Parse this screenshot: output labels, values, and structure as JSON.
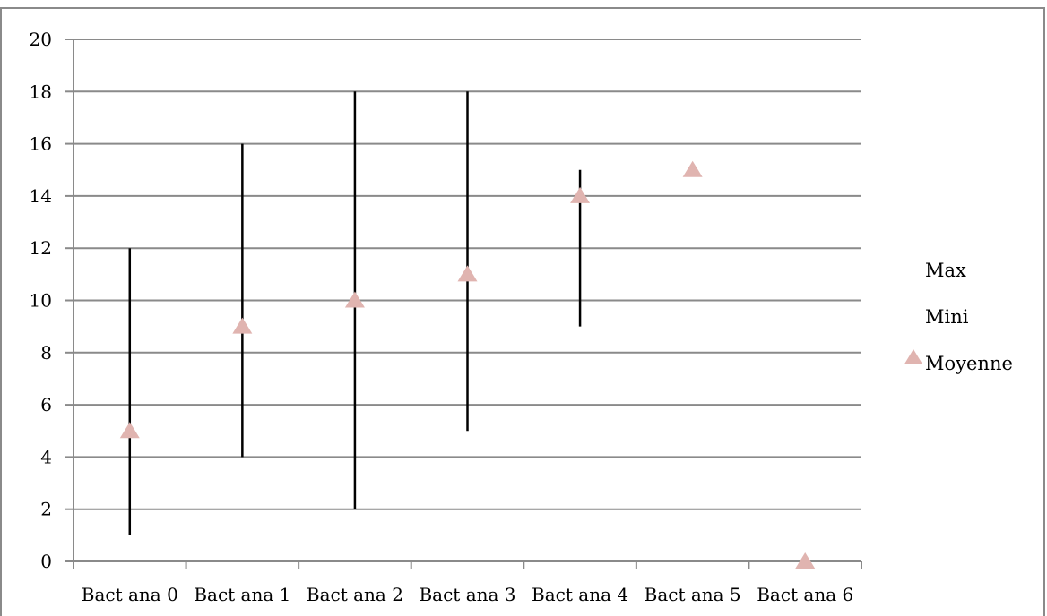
{
  "chart_data": {
    "type": "stock-hlc",
    "categories": [
      "Bact ana 0",
      "Bact ana 1",
      "Bact ana 2",
      "Bact ana 3",
      "Bact ana 4",
      "Bact ana 5",
      "Bact ana 6"
    ],
    "series": [
      {
        "name": "Max",
        "values": [
          12,
          16,
          18,
          18,
          15,
          null,
          null
        ]
      },
      {
        "name": "Mini",
        "values": [
          1,
          4,
          2,
          5,
          9,
          null,
          null
        ]
      },
      {
        "name": "Moyenne",
        "values": [
          5,
          9,
          10,
          11,
          14,
          15,
          0
        ],
        "marker": "triangle",
        "color": "#e0b4b0"
      }
    ],
    "ylim": [
      0,
      20
    ],
    "yticks": [
      0,
      2,
      4,
      6,
      8,
      10,
      12,
      14,
      16,
      18,
      20
    ],
    "yticklabels": [
      "0",
      "2",
      "4",
      "6",
      "8",
      "10",
      "12",
      "14",
      "16",
      "18",
      "20"
    ],
    "grid": true,
    "legend_position": "right",
    "title": "",
    "xlabel": "",
    "ylabel": ""
  }
}
